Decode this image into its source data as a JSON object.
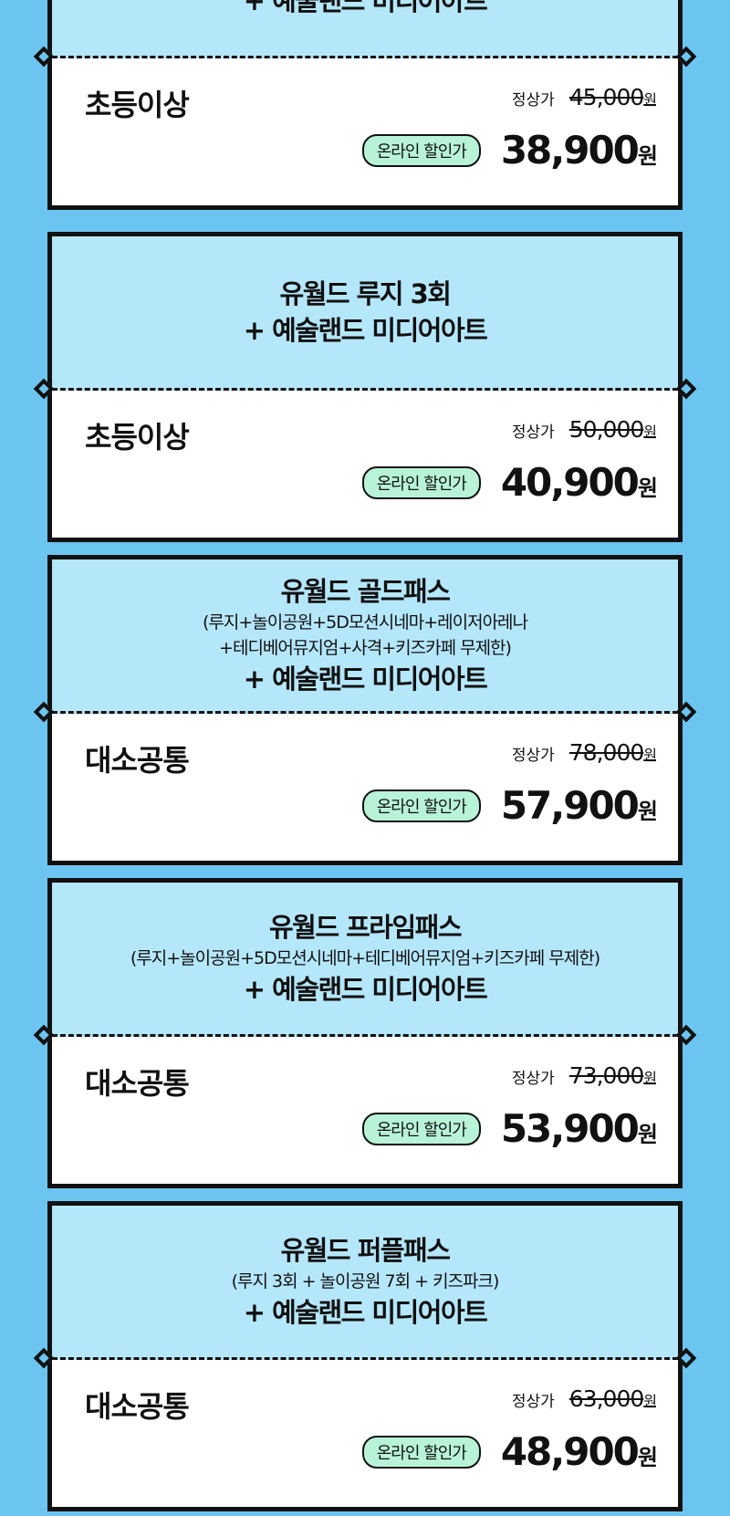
{
  "colors": {
    "background": "#6cc5f1",
    "card_top": "#b5e7fb",
    "badge": "#b8f3d8"
  },
  "labels": {
    "regular": "정상가",
    "online": "온라인 할인가",
    "won": "원"
  },
  "cards": [
    {
      "title": "",
      "sub": "",
      "title2": "+ 예술랜드 미디어아트",
      "age": "초등이상",
      "regular_price": "45,000",
      "sale_price": "38,900"
    },
    {
      "title": "유월드 루지 3회",
      "sub": "",
      "title2": "+ 예술랜드 미디어아트",
      "age": "초등이상",
      "regular_price": "50,000",
      "sale_price": "40,900"
    },
    {
      "title": "유월드 골드패스",
      "sub": "(루지+놀이공원+5D모션시네마+레이저아레나",
      "sub2": "+테디베어뮤지엄+사격+키즈카페 무제한)",
      "title2": "+ 예술랜드 미디어아트",
      "age": "대소공통",
      "regular_price": "78,000",
      "sale_price": "57,900"
    },
    {
      "title": "유월드 프라임패스",
      "sub": "(루지+놀이공원+5D모션시네마+테디베어뮤지엄+키즈카페 무제한)",
      "title2": "+ 예술랜드 미디어아트",
      "age": "대소공통",
      "regular_price": "73,000",
      "sale_price": "53,900"
    },
    {
      "title": "유월드 퍼플패스",
      "sub": "(루지 3회 + 놀이공원 7회 + 키즈파크)",
      "title2": "+ 예술랜드 미디어아트",
      "age": "대소공통",
      "regular_price": "63,000",
      "sale_price": "48,900"
    }
  ]
}
